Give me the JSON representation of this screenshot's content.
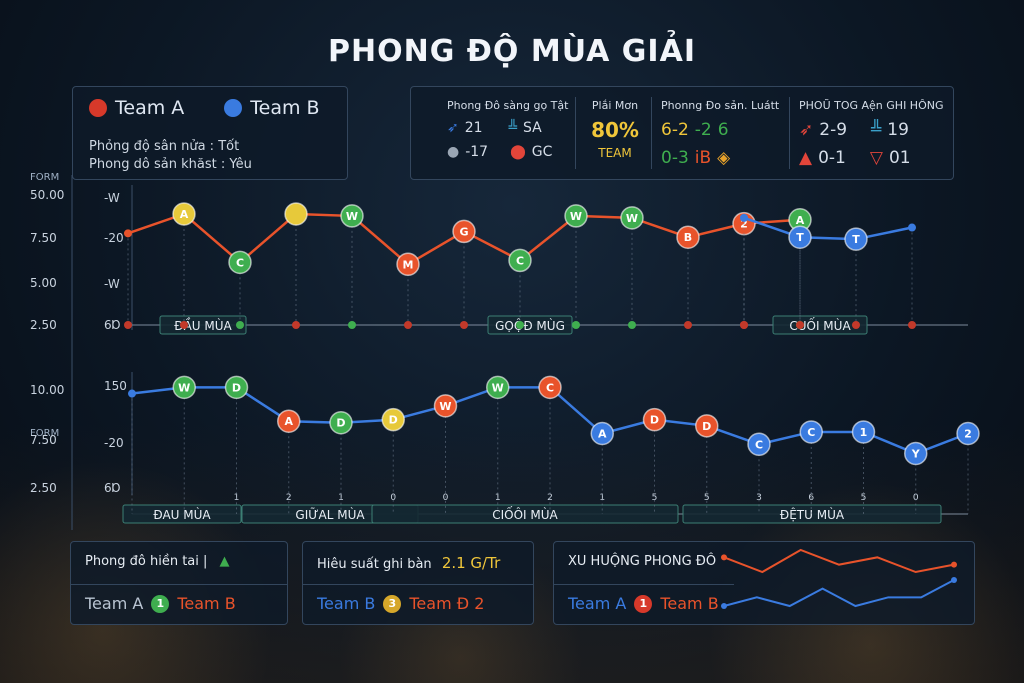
{
  "title": "PHONG ĐỘ MÙA GIẢI",
  "legend": {
    "team_a": "Team A",
    "team_b": "Team B",
    "line1_label": "Phỏng độ sân nửa :",
    "line1_value": "Tốt",
    "line2_label": "Phong dô sản khăst :",
    "line2_value": "Yêu"
  },
  "stats": {
    "col1_title": "Phong Đô sàng gọ Tật",
    "col1_r1_val": "21",
    "col1_r1_code": "SA",
    "col1_r2_val": "-17",
    "col1_r2_code": "GC",
    "col2_title": "Plắi Mơn",
    "col2_pct": "80%",
    "col2_sub": "TEAM",
    "col3_title": "Phonng Đo sản. Luátt",
    "col3_r1": "6-2",
    "col3_r1b": "-2",
    "col3_r1c": "6",
    "col3_r2": "0-3",
    "col3_r2b": "iB",
    "col4_title": "PHOŨ TOG Aện GHI HÔNG",
    "col4_r1": "2-9",
    "col4_r1b": "19",
    "col4_r2": "0-1",
    "col4_r2b": "01"
  },
  "colors": {
    "team_a": "#e8532b",
    "team_b": "#3a7be0",
    "win": "#3fae4f",
    "draw": "#e7c93a",
    "loss": "#e8532b",
    "grid": "#2b3c52",
    "axis": "#9fb0c4"
  },
  "chart_data": [
    {
      "type": "line",
      "ylabel": "FORM",
      "yticks": [
        "50.00",
        "7.50",
        "5.00",
        "2.50"
      ],
      "inner_ticks": [
        "-W",
        "-20",
        "-W",
        "6Ɒ"
      ],
      "phase_labels": [
        "ĐẦU MÙA",
        "GỌỘĐ MÙG",
        "CUỐI MÙA"
      ],
      "series": [
        {
          "name": "Team A",
          "x": [
            1,
            2,
            3,
            4,
            5,
            6,
            7,
            8,
            9,
            10,
            11,
            12,
            13,
            14,
            15
          ],
          "values": [
            7.5,
            8.5,
            6.0,
            8.5,
            8.4,
            5.9,
            7.6,
            6.1,
            8.4,
            8.3,
            7.3,
            8.0,
            8.2,
            null,
            null
          ],
          "markers": [
            "",
            "A",
            "C",
            "",
            "W",
            "M",
            "G",
            "C",
            "W",
            "W",
            "B",
            "2",
            "A",
            "",
            ""
          ],
          "marker_types": [
            "none",
            "draw",
            "win",
            "draw",
            "win",
            "loss",
            "loss",
            "win",
            "win",
            "win",
            "loss",
            "loss",
            "win",
            "none",
            "none"
          ]
        },
        {
          "name": "Team B",
          "x": [
            12,
            13,
            14,
            15
          ],
          "values": [
            8.3,
            7.3,
            7.2,
            7.8
          ],
          "markers": [
            "",
            "T",
            "T",
            ""
          ],
          "marker_types": [
            "none",
            "teamb",
            "teamb",
            "none"
          ]
        }
      ]
    },
    {
      "type": "line",
      "ylabel": "FORM",
      "yticks": [
        "10.00",
        "7.50",
        "2.50"
      ],
      "inner_ticks": [
        "150",
        "-20",
        "6Ɒ"
      ],
      "xticks": [
        "1",
        "2",
        "1",
        "0",
        "0",
        "1",
        "2",
        "1",
        "5",
        "5",
        "3",
        "6",
        "5",
        "0"
      ],
      "phase_labels": [
        "ĐAU MÙA",
        "GIỮAL MÙA",
        "CIỐÔI MÙA",
        "ĐỆTU MÙA"
      ],
      "series": [
        {
          "name": "Team B",
          "x": [
            1,
            2,
            3,
            4,
            5,
            6,
            7,
            8,
            9,
            10,
            11,
            12,
            13,
            14,
            15,
            16,
            17
          ],
          "values": [
            9.6,
            10.0,
            10.0,
            7.8,
            7.7,
            7.9,
            8.8,
            10.0,
            10.0,
            7.0,
            7.9,
            7.5,
            6.3,
            7.1,
            7.1,
            5.7,
            7.0
          ],
          "markers": [
            "",
            "W",
            "D",
            "A",
            "D",
            "D",
            "W",
            "W",
            "C",
            "A",
            "D",
            "D",
            "C",
            "C",
            "1",
            "Y",
            "2"
          ],
          "marker_types": [
            "none",
            "win",
            "win",
            "loss",
            "win",
            "draw",
            "loss",
            "win",
            "loss",
            "teamb",
            "loss",
            "loss",
            "teamb",
            "teamb",
            "teamb",
            "teamb",
            "teamb"
          ]
        }
      ]
    }
  ],
  "bottom": {
    "p1_title": "Phong đô hiền tai |",
    "p1_team_a": "Team A",
    "p1_chip": "1",
    "p1_team_b": "Team B",
    "p2_title": "Hiêu suất ghi bàn",
    "p2_value": "2.1 G/Tr",
    "p2_team_b": "Team B",
    "p2_chip": "3",
    "p2_team_a": "Team Đ 2",
    "p3_title": "XU HUỘNG PHONG ĐÔ",
    "p3_team_a": "Team A",
    "p3_chip": "1",
    "p3_team_b": "Team B",
    "p3_spark_a": [
      3,
      1,
      4,
      2,
      3,
      1,
      2
    ],
    "p3_spark_b": [
      1,
      2,
      1,
      3,
      1,
      2,
      2,
      4
    ]
  }
}
